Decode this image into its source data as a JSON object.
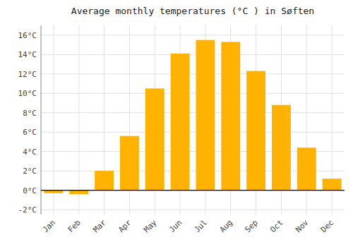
{
  "chart_data": {
    "type": "bar",
    "title": "Average monthly temperatures (°C ) in Søften",
    "categories": [
      "Jan",
      "Feb",
      "Mar",
      "Apr",
      "May",
      "Jun",
      "Jul",
      "Aug",
      "Sep",
      "Oct",
      "Nov",
      "Dec"
    ],
    "values": [
      -0.3,
      -0.4,
      2.0,
      5.6,
      10.5,
      14.1,
      15.5,
      15.3,
      12.3,
      8.8,
      4.4,
      1.2
    ],
    "color": "#FFB300",
    "ylim": [
      -2.5,
      17
    ],
    "yticks": [
      {
        "value": -2,
        "label": "-2°C"
      },
      {
        "value": 0,
        "label": "0°C"
      },
      {
        "value": 2,
        "label": "2°C"
      },
      {
        "value": 4,
        "label": "4°C"
      },
      {
        "value": 6,
        "label": "6°C"
      },
      {
        "value": 8,
        "label": "8°C"
      },
      {
        "value": 10,
        "label": "10°C"
      },
      {
        "value": 12,
        "label": "12°C"
      },
      {
        "value": 14,
        "label": "14°C"
      },
      {
        "value": 16,
        "label": "16°C"
      }
    ],
    "grid": true
  }
}
